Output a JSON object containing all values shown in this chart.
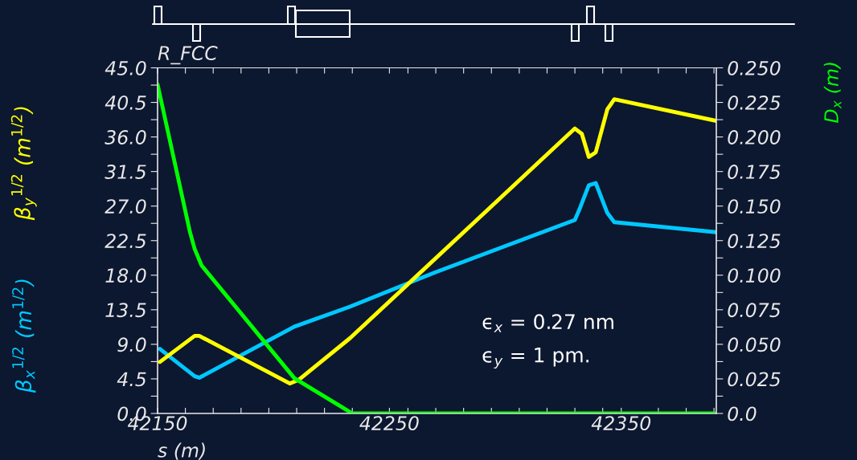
{
  "chart_data": {
    "type": "line",
    "xlabel": "s (m)",
    "ylabel": [
      "β$_{x}$$^{1/2}$ (m$^{1/2}$)",
      "β$_{y}$$^{1/2}$ (m$^{1/2}$)"
    ],
    "y2label": "D$_{x}$ (m)",
    "annotations": [
      "R_FCC",
      "ϵ$_{x}$ = 0.27 nm",
      "ϵ$_{y}$ = 1 pm."
    ],
    "xlim": [
      42150,
      42391
    ],
    "xticks": [
      {
        "value": 42150,
        "label": "42150"
      },
      {
        "value": 42162,
        "label": null
      },
      {
        "value": 42174,
        "label": null
      },
      {
        "value": 42186,
        "label": null
      },
      {
        "value": 42198,
        "label": null
      },
      {
        "value": 42210,
        "label": null
      },
      {
        "value": 42222,
        "label": null
      },
      {
        "value": 42234,
        "label": null
      },
      {
        "value": 42250,
        "label": "42250"
      },
      {
        "value": 42258,
        "label": null
      },
      {
        "value": 42270,
        "label": null
      },
      {
        "value": 42282,
        "label": null
      },
      {
        "value": 42294,
        "label": null
      },
      {
        "value": 42306,
        "label": null
      },
      {
        "value": 42318,
        "label": null
      },
      {
        "value": 42330,
        "label": null
      },
      {
        "value": 42342,
        "label": null
      },
      {
        "value": 42350,
        "label": "42350"
      },
      {
        "value": 42366,
        "label": null
      },
      {
        "value": 42378,
        "label": null
      },
      {
        "value": 42390,
        "label": null
      }
    ],
    "ylim": [
      0,
      45
    ],
    "yticks": [
      {
        "value": 0,
        "label": "0.0"
      },
      {
        "value": 2.25,
        "label": null
      },
      {
        "value": 4.5,
        "label": "4.5"
      },
      {
        "value": 6.75,
        "label": null
      },
      {
        "value": 9,
        "label": "9.0"
      },
      {
        "value": 11.25,
        "label": null
      },
      {
        "value": 13.5,
        "label": "13.5"
      },
      {
        "value": 15.75,
        "label": null
      },
      {
        "value": 18,
        "label": "18.0"
      },
      {
        "value": 20.25,
        "label": null
      },
      {
        "value": 22.5,
        "label": "22.5"
      },
      {
        "value": 24.75,
        "label": null
      },
      {
        "value": 27,
        "label": "27.0"
      },
      {
        "value": 29.25,
        "label": null
      },
      {
        "value": 31.5,
        "label": "31.5"
      },
      {
        "value": 33.75,
        "label": null
      },
      {
        "value": 36,
        "label": "36.0"
      },
      {
        "value": 38.25,
        "label": null
      },
      {
        "value": 40.5,
        "label": "40.5"
      },
      {
        "value": 42.75,
        "label": null
      },
      {
        "value": 45,
        "label": "45.0"
      }
    ],
    "y2lim": [
      0,
      0.25
    ],
    "y2ticks": [
      {
        "value": 0,
        "label": "0.0"
      },
      {
        "value": 0.0125,
        "label": null
      },
      {
        "value": 0.025,
        "label": "0.025"
      },
      {
        "value": 0.0375,
        "label": null
      },
      {
        "value": 0.05,
        "label": "0.050"
      },
      {
        "value": 0.0625,
        "label": null
      },
      {
        "value": 0.075,
        "label": "0.075"
      },
      {
        "value": 0.0875,
        "label": null
      },
      {
        "value": 0.1,
        "label": "0.100"
      },
      {
        "value": 0.1125,
        "label": null
      },
      {
        "value": 0.125,
        "label": "0.125"
      },
      {
        "value": 0.1375,
        "label": null
      },
      {
        "value": 0.15,
        "label": "0.150"
      },
      {
        "value": 0.1625,
        "label": null
      },
      {
        "value": 0.175,
        "label": "0.175"
      },
      {
        "value": 0.1875,
        "label": null
      },
      {
        "value": 0.2,
        "label": "0.200"
      },
      {
        "value": 0.2125,
        "label": null
      },
      {
        "value": 0.225,
        "label": "0.225"
      },
      {
        "value": 0.2375,
        "label": null
      },
      {
        "value": 0.25,
        "label": "0.250"
      }
    ],
    "series": [
      {
        "color": "#00c8ff",
        "x": [
          42151,
          42166,
          42168,
          42209,
          42233,
          42270,
          42330,
          42332,
          42336,
          42339,
          42344,
          42347,
          42391
        ],
        "values": [
          8.4,
          4.85,
          4.65,
          11.3,
          13.9,
          18.4,
          25.2,
          26.6,
          29.7,
          30.0,
          26.1,
          24.9,
          23.6
        ]
      },
      {
        "color": "#ffff00",
        "x": [
          42151,
          42166,
          42168,
          42207,
          42211,
          42233,
          42330,
          42333,
          42336,
          42339,
          42344,
          42347,
          42391
        ],
        "values": [
          6.7,
          10.1,
          10.1,
          3.9,
          4.4,
          9.8,
          37.1,
          36.4,
          33.4,
          34.0,
          39.6,
          40.9,
          38.1
        ]
      },
      {
        "color": "#00ff00",
        "axis": "y2",
        "x": [
          42150,
          42164,
          42166,
          42169,
          42209,
          42234,
          42391
        ],
        "values": [
          0.238,
          0.131,
          0.119,
          0.107,
          0.0255,
          0.0,
          0.0
        ]
      }
    ]
  }
}
